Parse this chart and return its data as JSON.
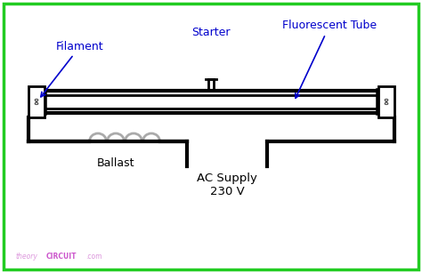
{
  "bg_color": "#ffffff",
  "border_color": "#22cc22",
  "line_color": "#000000",
  "label_color": "#0000cc",
  "ballast_color": "#aaaaaa",
  "watermark_theory_color": "#dd99dd",
  "watermark_circuit_color": "#cc55cc",
  "watermark_com_color": "#dd99dd",
  "labels": {
    "filament": "Filament",
    "starter": "Starter",
    "fluorescent": "Fluorescent Tube",
    "ballast": "Ballast",
    "ac_supply": "AC Supply",
    "voltage": "230 V"
  },
  "figsize": [
    4.74,
    3.07
  ],
  "dpi": 100
}
